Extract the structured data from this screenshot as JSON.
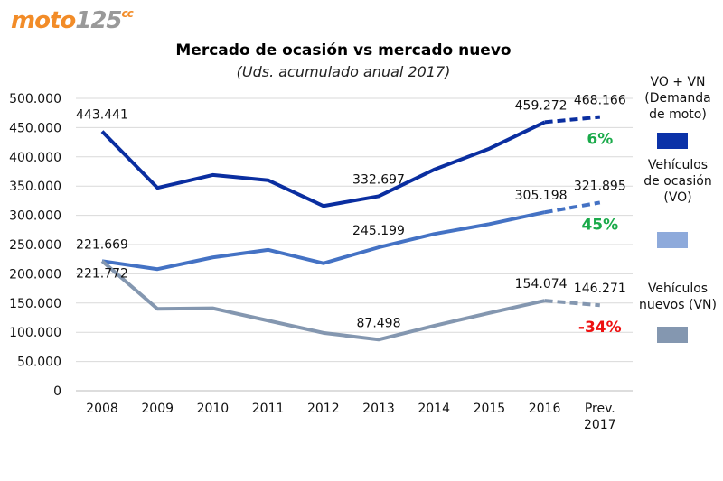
{
  "logo": {
    "text_main": "moto",
    "text_num": "125",
    "text_cc": "cc"
  },
  "chart_data": {
    "type": "line",
    "title": "Mercado de ocasión vs mercado nuevo",
    "subtitle": "(Uds. acumulado anual 2017)",
    "categories": [
      "2008",
      "2009",
      "2010",
      "2011",
      "2012",
      "2013",
      "2014",
      "2015",
      "2016",
      "Prev. 2017"
    ],
    "category_lines": [
      [
        "2008"
      ],
      [
        "2009"
      ],
      [
        "2010"
      ],
      [
        "2011"
      ],
      [
        "2012"
      ],
      [
        "2013"
      ],
      [
        "2014"
      ],
      [
        "2015"
      ],
      [
        "2016"
      ],
      [
        "Prev.",
        "2017"
      ]
    ],
    "ylim": [
      0,
      500000
    ],
    "yticks": [
      0,
      50000,
      100000,
      150000,
      200000,
      250000,
      300000,
      350000,
      400000,
      450000,
      500000
    ],
    "ytick_labels": [
      "0",
      "50.000",
      "100.000",
      "150.000",
      "200.000",
      "250.000",
      "300.000",
      "350.000",
      "400.000",
      "450.000",
      "500.000"
    ],
    "grid": true,
    "legend_position": "right",
    "series": [
      {
        "name": "VO + VN (Demanda de moto)",
        "legend_lines": [
          "VO + VN",
          "(Demanda",
          "de moto)"
        ],
        "color": "#0a2ea0",
        "swatch": "#0b32a8",
        "values": [
          443441,
          347000,
          369000,
          360000,
          316000,
          332697,
          378000,
          414000,
          459272,
          468166
        ],
        "labels": {
          "0": "443.441",
          "5": "332.697",
          "8": "459.272",
          "9": "468.166"
        },
        "change": "6%",
        "change_color": "#1aaa4a"
      },
      {
        "name": "Vehículos de ocasión (VO)",
        "legend_lines": [
          "Vehículos",
          "de ocasión",
          "(VO)"
        ],
        "color": "#4472c4",
        "swatch": "#8eaadb",
        "values": [
          221669,
          208000,
          228000,
          241000,
          218000,
          245199,
          268000,
          285000,
          305198,
          321895
        ],
        "labels": {
          "0": "221.669",
          "5": "245.199",
          "8": "305.198",
          "9": "321.895"
        },
        "change": "45%",
        "change_color": "#1aaa4a"
      },
      {
        "name": "Vehículos nuevos (VN)",
        "legend_lines": [
          "Vehículos",
          "nuevos (VN)"
        ],
        "color": "#8497b0",
        "swatch": "#8497b0",
        "values": [
          221772,
          140000,
          141000,
          120000,
          99000,
          87498,
          111000,
          133000,
          154074,
          146271
        ],
        "labels": {
          "0": "221.772",
          "5": "87.498",
          "8": "154.074",
          "9": "146.271"
        },
        "change": "-34%",
        "change_color": "#ee1111"
      }
    ]
  }
}
